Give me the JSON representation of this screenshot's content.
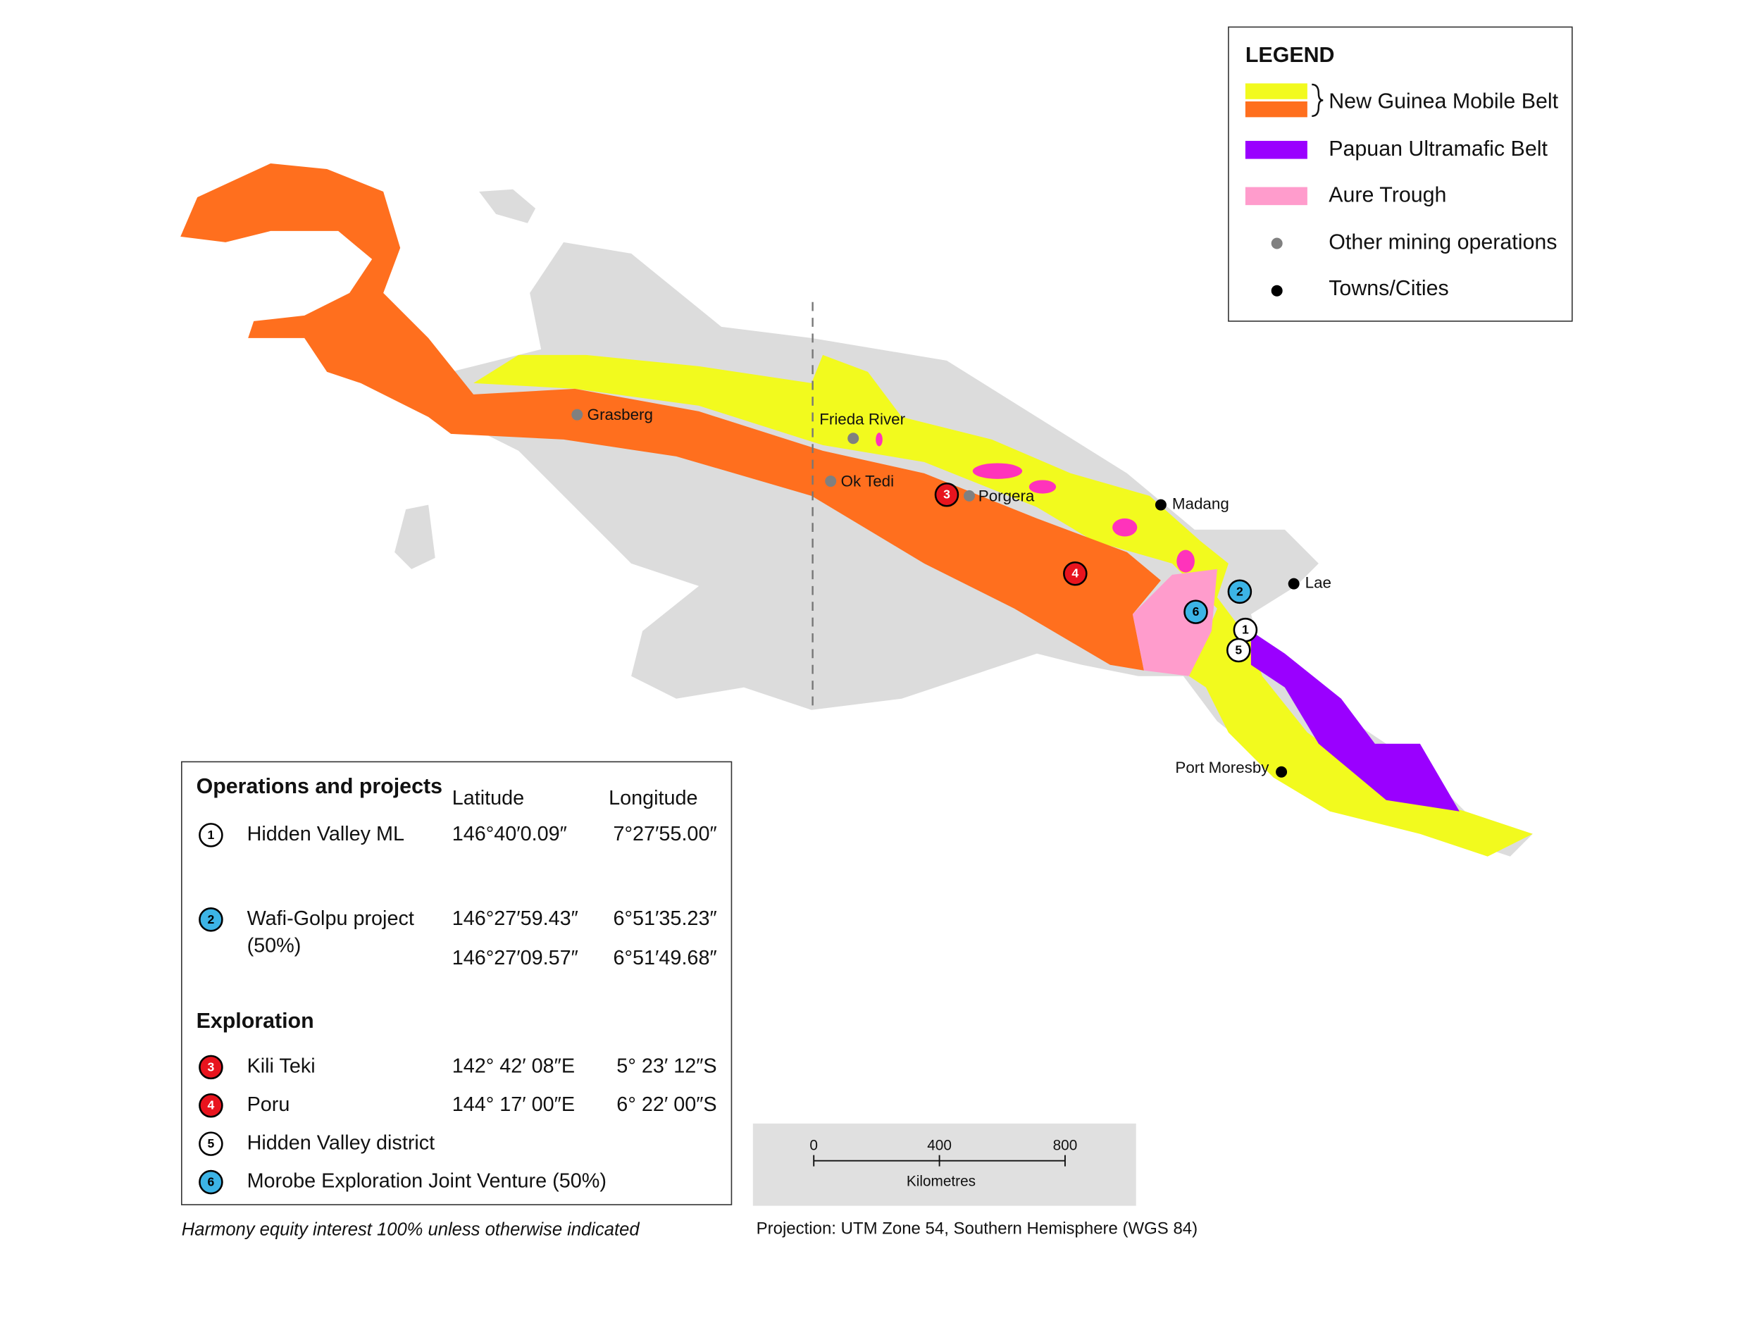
{
  "legend": {
    "title": "LEGEND",
    "items": [
      "New Guinea Mobile Belt",
      "Papuan Ultramafic Belt",
      "Aure Trough",
      "Other mining operations",
      "Towns/Cities"
    ]
  },
  "places": {
    "mines": [
      "Grasberg",
      "Frieda River",
      "Ok Tedi",
      "Porgera"
    ],
    "towns": [
      "Madang",
      "Lae",
      "Port Moresby"
    ]
  },
  "table": {
    "operations_heading": "Operations and projects",
    "latitude_heading": "Latitude",
    "longitude_heading": "Longitude",
    "operations": [
      {
        "number": "1",
        "name": "Hidden Valley ML",
        "coords": [
          [
            "146°40′0.09″",
            "7°27′55.00″"
          ]
        ]
      },
      {
        "number": "2",
        "name": "Wafi-Golpu project",
        "note": "(50%)",
        "coords": [
          [
            "146°27′59.43″",
            "6°51′35.23″"
          ],
          [
            "146°27′09.57″",
            "6°51′49.68″"
          ]
        ]
      }
    ],
    "exploration_heading": "Exploration",
    "exploration": [
      {
        "number": "3",
        "name": "Kili Teki",
        "coords": [
          [
            "142° 42′ 08″E",
            "5° 23′ 12″S"
          ]
        ]
      },
      {
        "number": "4",
        "name": "Poru",
        "coords": [
          [
            "144° 17′ 00″E",
            "6° 22′ 00″S"
          ]
        ]
      },
      {
        "number": "5",
        "name": "Hidden Valley district"
      },
      {
        "number": "6",
        "name": "Morobe Exploration Joint Venture (50%)"
      }
    ]
  },
  "scale_bar": {
    "ticks": [
      0,
      400,
      800
    ],
    "unit": "Kilometres"
  },
  "footnote": "Harmony equity interest 100% unless otherwise indicated",
  "projection": "Projection: UTM Zone 54, Southern Hemisphere (WGS 84)"
}
